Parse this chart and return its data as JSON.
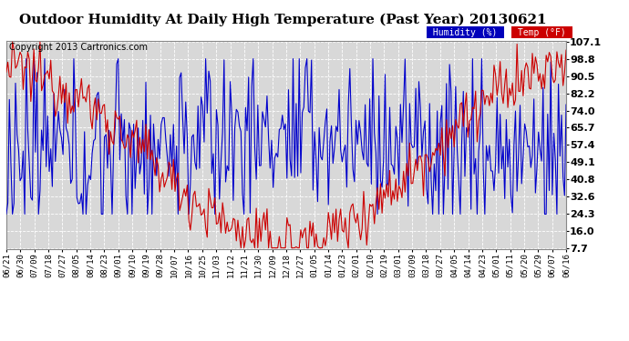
{
  "title": "Outdoor Humidity At Daily High Temperature (Past Year) 20130621",
  "copyright": "Copyright 2013 Cartronics.com",
  "legend_humidity": "Humidity (%)",
  "legend_temp": "Temp (°F)",
  "legend_humidity_bg": "#0000bb",
  "legend_temp_bg": "#cc0000",
  "bg_color": "#ffffff",
  "plot_bg_color": "#d8d8d8",
  "grid_color": "#ffffff",
  "y_ticks": [
    7.7,
    16.0,
    24.3,
    32.6,
    40.8,
    49.1,
    57.4,
    65.7,
    74.0,
    82.2,
    90.5,
    98.8,
    107.1
  ],
  "x_tick_labels": [
    "06/21",
    "06/30",
    "07/09",
    "07/18",
    "07/27",
    "08/05",
    "08/14",
    "08/23",
    "09/01",
    "09/10",
    "09/19",
    "09/28",
    "10/07",
    "10/16",
    "10/25",
    "11/03",
    "11/12",
    "11/21",
    "11/30",
    "12/09",
    "12/18",
    "12/27",
    "01/05",
    "01/14",
    "01/23",
    "02/01",
    "02/10",
    "02/19",
    "03/01",
    "03/09",
    "03/18",
    "03/27",
    "04/05",
    "04/14",
    "04/23",
    "05/01",
    "05/11",
    "05/20",
    "05/29",
    "06/07",
    "06/16"
  ],
  "ylim_min": 7.7,
  "ylim_max": 107.1,
  "title_fontsize": 11,
  "copyright_fontsize": 7,
  "tick_label_fontsize": 6.5,
  "y_tick_fontsize": 8
}
